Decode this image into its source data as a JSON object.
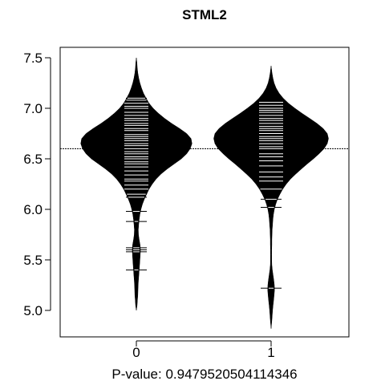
{
  "chart_data": {
    "type": "beanplot",
    "title": "STML2",
    "xlabel": "P-value: 0.9479520504114346",
    "ylabel": "",
    "categories": [
      "0",
      "1"
    ],
    "x_ticks": [
      "0",
      "1"
    ],
    "y_ticks": [
      "5.0",
      "5.5",
      "6.0",
      "6.5",
      "7.0",
      "7.5"
    ],
    "ylim": [
      4.75,
      7.6
    ],
    "overall_mean_line": 6.6,
    "series": [
      {
        "category": "0",
        "density": [
          [
            5.0,
            0.0
          ],
          [
            5.05,
            0.004
          ],
          [
            5.1,
            0.006
          ],
          [
            5.15,
            0.008
          ],
          [
            5.2,
            0.009
          ],
          [
            5.25,
            0.01
          ],
          [
            5.3,
            0.012
          ],
          [
            5.35,
            0.014
          ],
          [
            5.4,
            0.016
          ],
          [
            5.45,
            0.018
          ],
          [
            5.5,
            0.02
          ],
          [
            5.55,
            0.022
          ],
          [
            5.6,
            0.023
          ],
          [
            5.65,
            0.021
          ],
          [
            5.7,
            0.016
          ],
          [
            5.75,
            0.012
          ],
          [
            5.8,
            0.011
          ],
          [
            5.85,
            0.013
          ],
          [
            5.9,
            0.016
          ],
          [
            5.95,
            0.02
          ],
          [
            6.0,
            0.026
          ],
          [
            6.05,
            0.034
          ],
          [
            6.1,
            0.045
          ],
          [
            6.15,
            0.058
          ],
          [
            6.2,
            0.072
          ],
          [
            6.25,
            0.09
          ],
          [
            6.3,
            0.112
          ],
          [
            6.35,
            0.14
          ],
          [
            6.4,
            0.175
          ],
          [
            6.45,
            0.215
          ],
          [
            6.5,
            0.255
          ],
          [
            6.55,
            0.285
          ],
          [
            6.6,
            0.305
          ],
          [
            6.65,
            0.315
          ],
          [
            6.7,
            0.31
          ],
          [
            6.75,
            0.285
          ],
          [
            6.8,
            0.245
          ],
          [
            6.85,
            0.2
          ],
          [
            6.9,
            0.16
          ],
          [
            6.95,
            0.125
          ],
          [
            7.0,
            0.095
          ],
          [
            7.05,
            0.072
          ],
          [
            7.1,
            0.055
          ],
          [
            7.15,
            0.04
          ],
          [
            7.2,
            0.029
          ],
          [
            7.25,
            0.02
          ],
          [
            7.3,
            0.013
          ],
          [
            7.35,
            0.008
          ],
          [
            7.4,
            0.005
          ],
          [
            7.45,
            0.003
          ],
          [
            7.5,
            0.0
          ]
        ],
        "observations": [
          5.4,
          5.58,
          5.6,
          5.62,
          5.88,
          5.98,
          6.12,
          6.15,
          6.2,
          6.24,
          6.28,
          6.3,
          6.34,
          6.38,
          6.42,
          6.45,
          6.47,
          6.5,
          6.52,
          6.55,
          6.57,
          6.6,
          6.63,
          6.65,
          6.68,
          6.7,
          6.72,
          6.74,
          6.78,
          6.8,
          6.83,
          6.85,
          6.88,
          6.9,
          6.93,
          6.96,
          7.0,
          7.02,
          7.05,
          7.08,
          7.1
        ]
      },
      {
        "category": "1",
        "density": [
          [
            4.82,
            0.0
          ],
          [
            4.9,
            0.004
          ],
          [
            5.0,
            0.008
          ],
          [
            5.05,
            0.011
          ],
          [
            5.1,
            0.014
          ],
          [
            5.15,
            0.017
          ],
          [
            5.2,
            0.019
          ],
          [
            5.25,
            0.018
          ],
          [
            5.3,
            0.015
          ],
          [
            5.35,
            0.011
          ],
          [
            5.4,
            0.007
          ],
          [
            5.45,
            0.004
          ],
          [
            5.5,
            0.003
          ],
          [
            5.55,
            0.003
          ],
          [
            5.6,
            0.003
          ],
          [
            5.65,
            0.004
          ],
          [
            5.7,
            0.004
          ],
          [
            5.75,
            0.005
          ],
          [
            5.8,
            0.006
          ],
          [
            5.85,
            0.008
          ],
          [
            5.9,
            0.01
          ],
          [
            5.95,
            0.013
          ],
          [
            6.0,
            0.018
          ],
          [
            6.05,
            0.026
          ],
          [
            6.1,
            0.036
          ],
          [
            6.15,
            0.05
          ],
          [
            6.2,
            0.066
          ],
          [
            6.25,
            0.086
          ],
          [
            6.3,
            0.11
          ],
          [
            6.35,
            0.14
          ],
          [
            6.4,
            0.172
          ],
          [
            6.45,
            0.205
          ],
          [
            6.5,
            0.24
          ],
          [
            6.55,
            0.272
          ],
          [
            6.6,
            0.3
          ],
          [
            6.65,
            0.318
          ],
          [
            6.7,
            0.325
          ],
          [
            6.75,
            0.318
          ],
          [
            6.8,
            0.295
          ],
          [
            6.85,
            0.26
          ],
          [
            6.9,
            0.218
          ],
          [
            6.95,
            0.175
          ],
          [
            7.0,
            0.135
          ],
          [
            7.05,
            0.098
          ],
          [
            7.1,
            0.068
          ],
          [
            7.15,
            0.045
          ],
          [
            7.2,
            0.028
          ],
          [
            7.25,
            0.017
          ],
          [
            7.3,
            0.01
          ],
          [
            7.35,
            0.005
          ],
          [
            7.42,
            0.0
          ]
        ],
        "observations": [
          5.22,
          6.02,
          6.1,
          6.2,
          6.28,
          6.32,
          6.37,
          6.43,
          6.48,
          6.52,
          6.55,
          6.6,
          6.62,
          6.65,
          6.68,
          6.7,
          6.72,
          6.75,
          6.78,
          6.8,
          6.82,
          6.85,
          6.88,
          6.9,
          6.93,
          6.96,
          6.98,
          7.0,
          7.03,
          7.06
        ]
      }
    ],
    "grid": false,
    "legend": "none"
  }
}
